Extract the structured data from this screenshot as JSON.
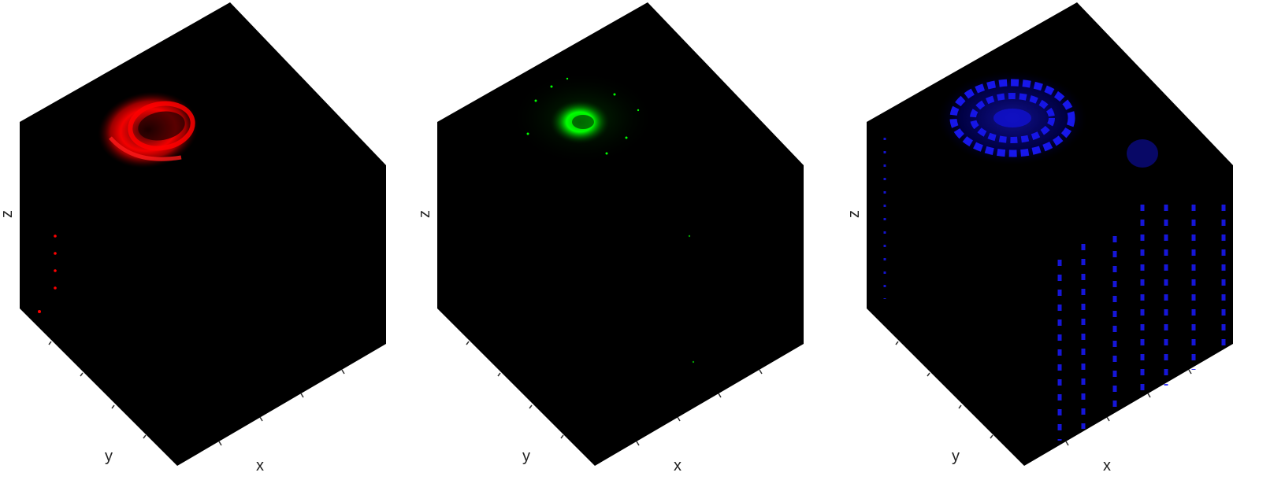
{
  "panels": [
    {
      "channel": "red",
      "color": "#ff0000",
      "axes": {
        "x": "x",
        "y": "y",
        "z": "z"
      }
    },
    {
      "channel": "green",
      "color": "#00ff00",
      "axes": {
        "x": "x",
        "y": "y",
        "z": "z"
      }
    },
    {
      "channel": "blue",
      "color": "#1a1aff",
      "axes": {
        "x": "x",
        "y": "y",
        "z": "z"
      }
    }
  ]
}
